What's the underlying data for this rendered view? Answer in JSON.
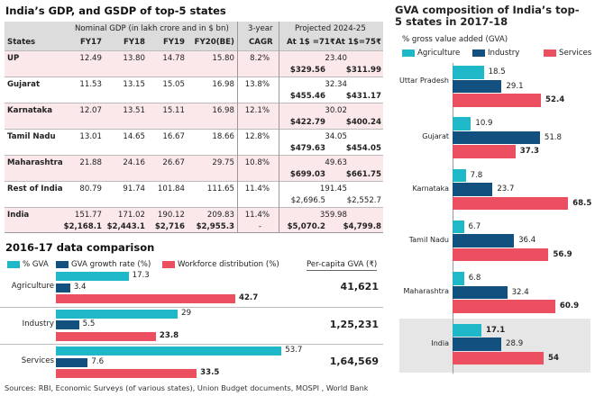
{
  "colors": {
    "agriculture": "#1fb8c9",
    "industry": "#12507f",
    "services": "#ec5060",
    "pink_row": "#fbe8ea",
    "header": "#dcdcdc"
  },
  "table": {
    "title": "India’s GDP, and GSDP of top-5 states",
    "group_headers": {
      "nominal": "Nominal GDP (in lakh crore and in $ bn)",
      "cagr": "3-year",
      "projected": "Projected 2024-25"
    },
    "columns": [
      "States",
      "FY17",
      "FY18",
      "FY19",
      "FY20(BE)",
      "CAGR",
      "At 1$ =71₹",
      "At 1$=75₹"
    ],
    "rows": [
      {
        "state": "UP",
        "fy17": "12.49",
        "fy18": "13.80",
        "fy19": "14.78",
        "fy20": "15.80",
        "fy17_usd": "",
        "fy18_usd": "",
        "fy19_usd": "",
        "fy20_usd": "",
        "cagr": "8.2%",
        "proj": "23.40",
        "at71": "$329.56",
        "at75": "$311.99"
      },
      {
        "state": "Gujarat",
        "fy17": "11.53",
        "fy18": "13.15",
        "fy19": "15.05",
        "fy20": "16.98",
        "fy17_usd": "",
        "fy18_usd": "",
        "fy19_usd": "",
        "fy20_usd": "",
        "cagr": "13.8%",
        "proj": "32.34",
        "at71": "$455.46",
        "at75": "$431.17"
      },
      {
        "state": "Karnataka",
        "fy17": "12.07",
        "fy18": "13.51",
        "fy19": "15.11",
        "fy20": "16.98",
        "fy17_usd": "",
        "fy18_usd": "",
        "fy19_usd": "",
        "fy20_usd": "",
        "cagr": "12.1%",
        "proj": "30.02",
        "at71": "$422.79",
        "at75": "$400.24"
      },
      {
        "state": "Tamil Nadu",
        "fy17": "13.01",
        "fy18": "14.65",
        "fy19": "16.67",
        "fy20": "18.66",
        "fy17_usd": "",
        "fy18_usd": "",
        "fy19_usd": "",
        "fy20_usd": "",
        "cagr": "12.8%",
        "proj": "34.05",
        "at71": "$479.63",
        "at75": "$454.05"
      },
      {
        "state": "Maharashtra",
        "fy17": "21.88",
        "fy18": "24.16",
        "fy19": "26.67",
        "fy20": "29.75",
        "fy17_usd": "",
        "fy18_usd": "",
        "fy19_usd": "",
        "fy20_usd": "",
        "cagr": "10.8%",
        "proj": "49.63",
        "at71": "$699.03",
        "at75": "$661.75"
      },
      {
        "state": "Rest of India",
        "fy17": "80.79",
        "fy18": "91.74",
        "fy19": "101.84",
        "fy20": "111.65",
        "fy17_usd": "",
        "fy18_usd": "",
        "fy19_usd": "",
        "fy20_usd": "",
        "cagr": "11.4%",
        "proj": "191.45",
        "at71": "$2,696.5",
        "at75": "$2,552.7"
      },
      {
        "state": "India",
        "fy17": "151.77",
        "fy18": "171.02",
        "fy19": "190.12",
        "fy20": "209.83",
        "fy17_usd": "$2,168.1",
        "fy18_usd": "$2,443.1",
        "fy19_usd": "$2,716",
        "fy20_usd": "$2,955.3",
        "cagr": "11.4%",
        "cagr2": "-",
        "proj": "359.98",
        "at71": "$5,070.2",
        "at75": "$4,799.8"
      }
    ]
  },
  "chart_data": [
    {
      "type": "bar",
      "orientation": "horizontal",
      "title": "2016-17 data comparison",
      "categories": [
        "Agriculture",
        "Industry",
        "Services"
      ],
      "series": [
        {
          "name": "% GVA",
          "values": [
            17.3,
            29,
            53.7
          ]
        },
        {
          "name": "GVA growth rate (%)",
          "values": [
            3.4,
            5.5,
            7.6
          ]
        },
        {
          "name": "Workforce distribution (%)",
          "values": [
            42.7,
            23.8,
            33.5
          ]
        }
      ],
      "side_label": "Per-capita GVA (₹)",
      "side_values": [
        "41,621",
        "1,25,231",
        "1,64,569"
      ]
    },
    {
      "type": "bar",
      "orientation": "horizontal",
      "title": "GVA composition of India’s top-5 states in 2017-18",
      "subtitle": "% gross value added (GVA)",
      "categories": [
        "Uttar Pradesh",
        "Gujarat",
        "Karnataka",
        "Tamil Nadu",
        "Maharashtra",
        "India"
      ],
      "series": [
        {
          "name": "Agriculture",
          "values": [
            18.5,
            10.9,
            7.8,
            6.7,
            6.8,
            17.1
          ]
        },
        {
          "name": "Industry",
          "values": [
            29.1,
            51.8,
            23.7,
            36.4,
            32.4,
            28.9
          ]
        },
        {
          "name": "Services",
          "values": [
            52.4,
            37.3,
            68.5,
            56.9,
            60.9,
            54
          ]
        }
      ],
      "highlight": "India"
    }
  ],
  "footer": "Sources: RBI, Economic Surveys (of various states), Union Budget documents, MOSPI , World Bank"
}
